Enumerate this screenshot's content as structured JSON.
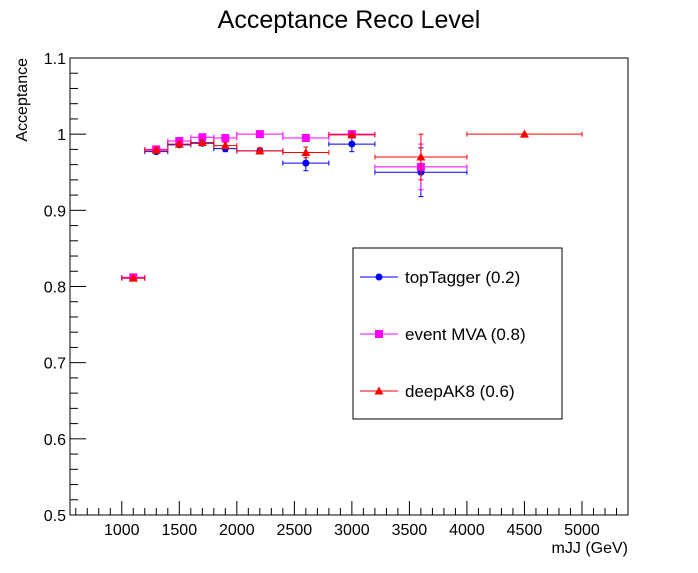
{
  "chart_data": {
    "type": "scatter",
    "title": "Acceptance Reco Level",
    "xlabel": "mJJ (GeV)",
    "ylabel": "Acceptance",
    "xlim": [
      550,
      5400
    ],
    "ylim": [
      0.5,
      1.1
    ],
    "x_major_ticks": [
      1000,
      1500,
      2000,
      2500,
      3000,
      3500,
      4000,
      4500,
      5000
    ],
    "x_tick_labels": [
      "1000",
      "1500",
      "2000",
      "2500",
      "3000",
      "3500",
      "4000",
      "4500",
      "5000"
    ],
    "x_minor_step": 100,
    "y_major_ticks": [
      0.5,
      0.6,
      0.7,
      0.8,
      0.9,
      1.0,
      1.1
    ],
    "y_tick_labels": [
      "0.5",
      "0.6",
      "0.7",
      "0.8",
      "0.9",
      "1",
      "1.1"
    ],
    "y_minor_step": 0.02,
    "grid": false,
    "legend_position": "right",
    "series": [
      {
        "name": "topTagger (0.2)",
        "color": "#0000ff",
        "marker": "circle",
        "points": [
          {
            "x": 1100,
            "xlo": 1000,
            "xhi": 1200,
            "y": 0.811,
            "yerr": 0.002
          },
          {
            "x": 1300,
            "xlo": 1200,
            "xhi": 1400,
            "y": 0.977,
            "yerr": 0.003
          },
          {
            "x": 1500,
            "xlo": 1400,
            "xhi": 1600,
            "y": 0.986,
            "yerr": 0.003
          },
          {
            "x": 1700,
            "xlo": 1600,
            "xhi": 1800,
            "y": 0.988,
            "yerr": 0.003
          },
          {
            "x": 1900,
            "xlo": 1800,
            "xhi": 2000,
            "y": 0.981,
            "yerr": 0.004
          },
          {
            "x": 2200,
            "xlo": 2000,
            "xhi": 2400,
            "y": 0.978,
            "yerr": 0.004
          },
          {
            "x": 2600,
            "xlo": 2400,
            "xhi": 2800,
            "y": 0.962,
            "yerr": 0.01
          },
          {
            "x": 3000,
            "xlo": 2800,
            "xhi": 3200,
            "y": 0.987,
            "yerr": 0.01
          },
          {
            "x": 3600,
            "xlo": 3200,
            "xhi": 4000,
            "y": 0.95,
            "yerr": 0.032
          }
        ]
      },
      {
        "name": "event MVA (0.8)",
        "color": "#ff00ff",
        "marker": "square",
        "points": [
          {
            "x": 1100,
            "xlo": 1000,
            "xhi": 1200,
            "y": 0.812,
            "yerr": 0.002
          },
          {
            "x": 1300,
            "xlo": 1200,
            "xhi": 1400,
            "y": 0.98,
            "yerr": 0.003
          },
          {
            "x": 1500,
            "xlo": 1400,
            "xhi": 1600,
            "y": 0.991,
            "yerr": 0.003
          },
          {
            "x": 1700,
            "xlo": 1600,
            "xhi": 1800,
            "y": 0.996,
            "yerr": 0.002
          },
          {
            "x": 1900,
            "xlo": 1800,
            "xhi": 2000,
            "y": 0.995,
            "yerr": 0.002
          },
          {
            "x": 2200,
            "xlo": 2000,
            "xhi": 2400,
            "y": 1.0,
            "yerr": 0.001
          },
          {
            "x": 2600,
            "xlo": 2400,
            "xhi": 2800,
            "y": 0.995,
            "yerr": 0.003
          },
          {
            "x": 3000,
            "xlo": 2800,
            "xhi": 3200,
            "y": 1.0,
            "yerr": 0.001
          },
          {
            "x": 3600,
            "xlo": 3200,
            "xhi": 4000,
            "y": 0.957,
            "yerr": 0.03
          }
        ]
      },
      {
        "name": "deepAK8 (0.6)",
        "color": "#ff0000",
        "marker": "triangle",
        "points": [
          {
            "x": 1100,
            "xlo": 1000,
            "xhi": 1200,
            "y": 0.811,
            "yerr": 0.002
          },
          {
            "x": 1300,
            "xlo": 1200,
            "xhi": 1400,
            "y": 0.979,
            "yerr": 0.003
          },
          {
            "x": 1500,
            "xlo": 1400,
            "xhi": 1600,
            "y": 0.987,
            "yerr": 0.003
          },
          {
            "x": 1700,
            "xlo": 1600,
            "xhi": 1800,
            "y": 0.989,
            "yerr": 0.003
          },
          {
            "x": 1900,
            "xlo": 1800,
            "xhi": 2000,
            "y": 0.985,
            "yerr": 0.004
          },
          {
            "x": 2200,
            "xlo": 2000,
            "xhi": 2400,
            "y": 0.978,
            "yerr": 0.004
          },
          {
            "x": 2600,
            "xlo": 2400,
            "xhi": 2800,
            "y": 0.976,
            "yerr": 0.007
          },
          {
            "x": 3000,
            "xlo": 2800,
            "xhi": 3200,
            "y": 0.999,
            "yerr": 0.001
          },
          {
            "x": 3600,
            "xlo": 3200,
            "xhi": 4000,
            "y": 0.97,
            "yerr": 0.03
          },
          {
            "x": 4500,
            "xlo": 4000,
            "xhi": 5000,
            "y": 1.0,
            "yerr": 0.001
          }
        ]
      }
    ]
  }
}
